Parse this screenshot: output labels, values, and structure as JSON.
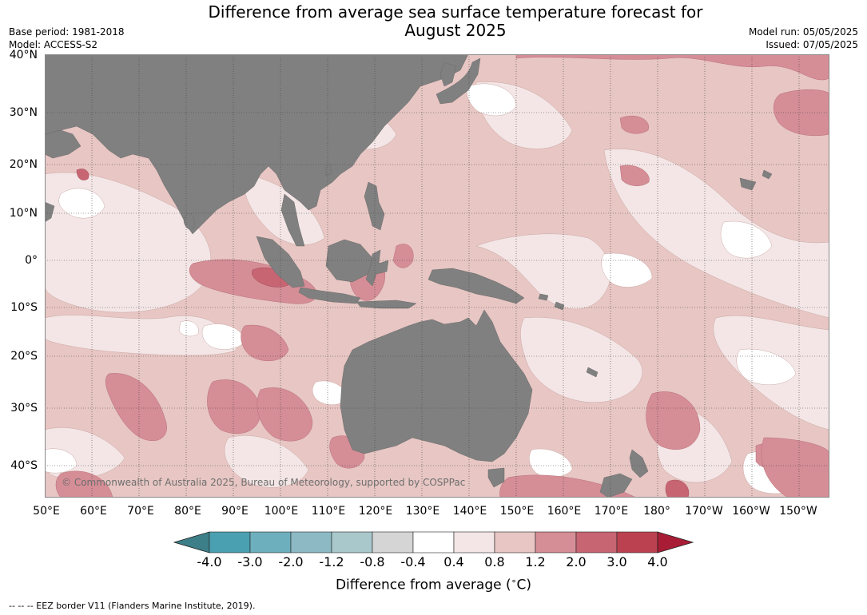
{
  "title_line1": "Difference from average sea surface temperature forecast for",
  "title_line2": "August 2025",
  "meta_left": {
    "base_period": "Base period: 1981-2018",
    "model": "Model: ACCESS-S2"
  },
  "meta_right": {
    "model_run": "Model run: 05/05/2025",
    "issued": "Issued: 07/05/2025"
  },
  "lat_labels": [
    "40°N",
    "30°N",
    "20°N",
    "10°N",
    "0°",
    "10°S",
    "20°S",
    "30°S",
    "40°S"
  ],
  "lon_labels": [
    "50°E",
    "60°E",
    "70°E",
    "80°E",
    "90°E",
    "100°E",
    "110°E",
    "120°E",
    "130°E",
    "140°E",
    "150°E",
    "160°E",
    "170°E",
    "180°",
    "170°W",
    "160°W",
    "150°W"
  ],
  "copyright": "© Commonwealth of Australia 2025, Bureau of Meteorology, supported by COSPPac",
  "colorbar": {
    "ticks": [
      "-4.0",
      "-3.0",
      "-2.0",
      "-1.2",
      "-0.8",
      "-0.4",
      "0.4",
      "0.8",
      "1.2",
      "2.0",
      "3.0",
      "4.0"
    ],
    "colors": [
      "#3d7f88",
      "#4aa0b1",
      "#6eafbd",
      "#8db9c5",
      "#a9c8cc",
      "#d5d5d5",
      "#ffffff",
      "#f4e6e6",
      "#e7c6c3",
      "#d58d96",
      "#c86573",
      "#bc4150",
      "#a81d35"
    ],
    "label": "Difference from average ($^\\circ$C)"
  },
  "footer": "-- -- -- EEZ border V11 (Flanders Marine Institute, 2019).",
  "land_color": "#808080",
  "ocean_base_color": "#e7c6c3"
}
